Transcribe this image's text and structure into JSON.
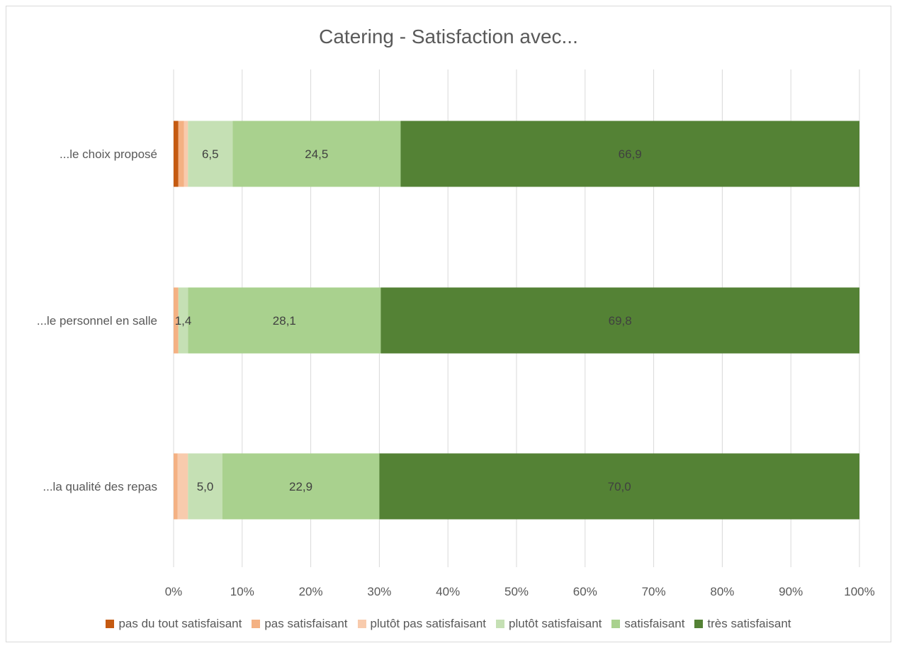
{
  "chart_data": {
    "type": "bar",
    "orientation": "horizontal",
    "stacked": "percent",
    "title": "Catering - Satisfaction avec...",
    "categories": [
      "...le choix proposé",
      "...le personnel en salle",
      "...la qualité des repas"
    ],
    "xlim": [
      0,
      100
    ],
    "x_ticks": [
      "0%",
      "10%",
      "20%",
      "30%",
      "40%",
      "50%",
      "60%",
      "70%",
      "80%",
      "90%",
      "100%"
    ],
    "grid": true,
    "legend_position": "bottom",
    "series": [
      {
        "name": "pas du tout satisfaisant",
        "color": "#c55a11",
        "values": [
          0.7,
          0,
          0
        ]
      },
      {
        "name": "pas satisfaisant",
        "color": "#f4b183",
        "values": [
          0.8,
          0.7,
          0.6
        ]
      },
      {
        "name": "plutôt pas satisfaisant",
        "color": "#f8cbad",
        "values": [
          0.6,
          0,
          1.5
        ]
      },
      {
        "name": "plutôt satisfaisant",
        "color": "#c5e0b4",
        "values": [
          6.5,
          1.4,
          5.0
        ]
      },
      {
        "name": "satisfaisant",
        "color": "#a9d18e",
        "values": [
          24.5,
          28.1,
          22.9
        ]
      },
      {
        "name": "très satisfaisant",
        "color": "#548235",
        "values": [
          66.9,
          69.8,
          70.0
        ]
      }
    ],
    "data_labels": [
      [
        "",
        "",
        "",
        "6,5",
        "24,5",
        "66,9"
      ],
      [
        "",
        "",
        "",
        "1,4",
        "28,1",
        "69,8"
      ],
      [
        "",
        "",
        "",
        "5,0",
        "22,9",
        "70,0"
      ]
    ]
  }
}
